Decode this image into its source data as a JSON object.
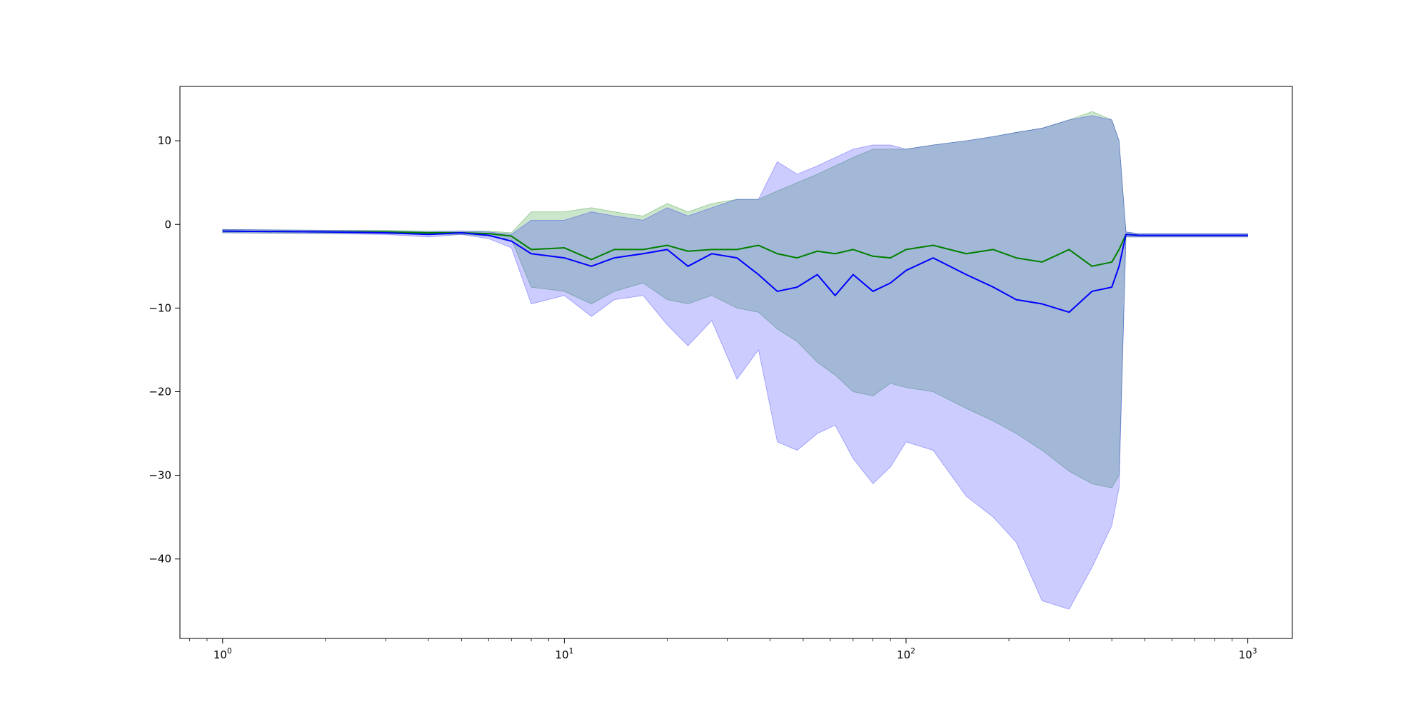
{
  "chart_data": {
    "type": "line",
    "title": "",
    "xlabel": "",
    "ylabel": "",
    "xscale": "log",
    "xlim": [
      0.75,
      1350
    ],
    "ylim": [
      -49.5,
      16.5
    ],
    "grid": false,
    "x_ticks": [
      1,
      10,
      100,
      1000
    ],
    "x_tick_labels": [
      {
        "base": "10",
        "exp": "0"
      },
      {
        "base": "10",
        "exp": "1"
      },
      {
        "base": "10",
        "exp": "2"
      },
      {
        "base": "10",
        "exp": "3"
      }
    ],
    "y_ticks": [
      10,
      0,
      -10,
      -20,
      -30,
      -40
    ],
    "y_tick_labels": [
      "10",
      "0",
      "−10",
      "−20",
      "−30",
      "−40"
    ],
    "colors": {
      "green_line": "#008000",
      "blue_line": "#0000ff",
      "green_band": "#008000",
      "blue_band": "#0000ff",
      "axes_frame": "#000000"
    },
    "series": [
      {
        "line_color": "#008000",
        "band_color": "#008000",
        "band_opacity": 0.2,
        "x": [
          1,
          2,
          3,
          4,
          5,
          6,
          7,
          8,
          10,
          12,
          14,
          17,
          20,
          23,
          27,
          32,
          37,
          42,
          48,
          55,
          62,
          70,
          80,
          90,
          100,
          120,
          150,
          180,
          210,
          250,
          300,
          350,
          400,
          420,
          440,
          480,
          550,
          700,
          1000
        ],
        "mean": [
          -0.8,
          -0.9,
          -0.9,
          -1.0,
          -1.0,
          -1.1,
          -1.4,
          -3.0,
          -2.8,
          -4.2,
          -3.0,
          -3.0,
          -2.5,
          -3.2,
          -3.0,
          -3.0,
          -2.5,
          -3.5,
          -4.0,
          -3.2,
          -3.5,
          -3.0,
          -3.8,
          -4.0,
          -3.0,
          -2.5,
          -3.5,
          -3.0,
          -4.0,
          -4.5,
          -3.0,
          -5.0,
          -4.5,
          -3.0,
          -1.2,
          -1.3,
          -1.3,
          -1.3,
          -1.3
        ],
        "upper": [
          -0.6,
          -0.7,
          -0.7,
          -0.8,
          -0.8,
          -0.8,
          -1.0,
          1.5,
          1.5,
          2.0,
          1.5,
          1.0,
          2.5,
          1.5,
          2.5,
          3.0,
          3.0,
          4.0,
          5.0,
          6.0,
          7.0,
          8.0,
          9.0,
          9.0,
          9.0,
          9.5,
          10.0,
          10.5,
          11.0,
          11.5,
          12.5,
          13.5,
          12.5,
          10.0,
          -0.9,
          -1.1,
          -1.1,
          -1.1,
          -1.1
        ],
        "lower": [
          -1.0,
          -1.1,
          -1.1,
          -1.2,
          -1.2,
          -1.4,
          -1.8,
          -7.5,
          -8.0,
          -9.5,
          -8.0,
          -7.0,
          -9.0,
          -9.5,
          -8.5,
          -10.0,
          -10.5,
          -12.5,
          -14.0,
          -16.5,
          -18.0,
          -20.0,
          -20.5,
          -19.0,
          -19.5,
          -20.0,
          -22.0,
          -23.5,
          -25.0,
          -27.0,
          -29.5,
          -31.0,
          -31.5,
          -30.0,
          -1.5,
          -1.5,
          -1.5,
          -1.5,
          -1.5
        ]
      },
      {
        "line_color": "#0000ff",
        "band_color": "#0000ff",
        "band_opacity": 0.2,
        "x": [
          1,
          2,
          3,
          4,
          5,
          6,
          7,
          8,
          10,
          12,
          14,
          17,
          20,
          23,
          27,
          32,
          37,
          42,
          48,
          55,
          62,
          70,
          80,
          90,
          100,
          120,
          150,
          180,
          210,
          250,
          300,
          350,
          400,
          420,
          440,
          480,
          550,
          700,
          1000
        ],
        "mean": [
          -0.8,
          -0.9,
          -1.0,
          -1.2,
          -1.0,
          -1.3,
          -2.0,
          -3.5,
          -4.0,
          -5.0,
          -4.0,
          -3.5,
          -3.0,
          -5.0,
          -3.5,
          -4.0,
          -6.0,
          -8.0,
          -7.5,
          -6.0,
          -8.5,
          -6.0,
          -8.0,
          -7.0,
          -5.5,
          -4.0,
          -6.0,
          -7.5,
          -9.0,
          -9.5,
          -10.5,
          -8.0,
          -7.5,
          -5.0,
          -1.2,
          -1.3,
          -1.3,
          -1.3,
          -1.3
        ],
        "upper": [
          -0.6,
          -0.7,
          -0.8,
          -0.9,
          -0.8,
          -0.9,
          -1.2,
          0.5,
          0.5,
          1.5,
          1.0,
          0.5,
          2.0,
          1.0,
          2.0,
          3.0,
          3.0,
          7.5,
          6.0,
          7.0,
          8.0,
          9.0,
          9.5,
          9.5,
          9.0,
          9.5,
          10.0,
          10.5,
          11.0,
          11.5,
          12.5,
          13.0,
          12.5,
          10.0,
          -0.9,
          -1.1,
          -1.1,
          -1.1,
          -1.1
        ],
        "lower": [
          -1.0,
          -1.1,
          -1.2,
          -1.5,
          -1.2,
          -1.7,
          -2.8,
          -9.5,
          -8.5,
          -11.0,
          -9.0,
          -8.5,
          -12.0,
          -14.5,
          -11.5,
          -18.5,
          -15.0,
          -26.0,
          -27.0,
          -25.0,
          -24.0,
          -28.0,
          -31.0,
          -29.0,
          -26.0,
          -27.0,
          -32.5,
          -35.0,
          -38.0,
          -45.0,
          -46.0,
          -41.0,
          -36.0,
          -31.5,
          -1.5,
          -1.5,
          -1.5,
          -1.5,
          -1.5
        ]
      }
    ]
  }
}
